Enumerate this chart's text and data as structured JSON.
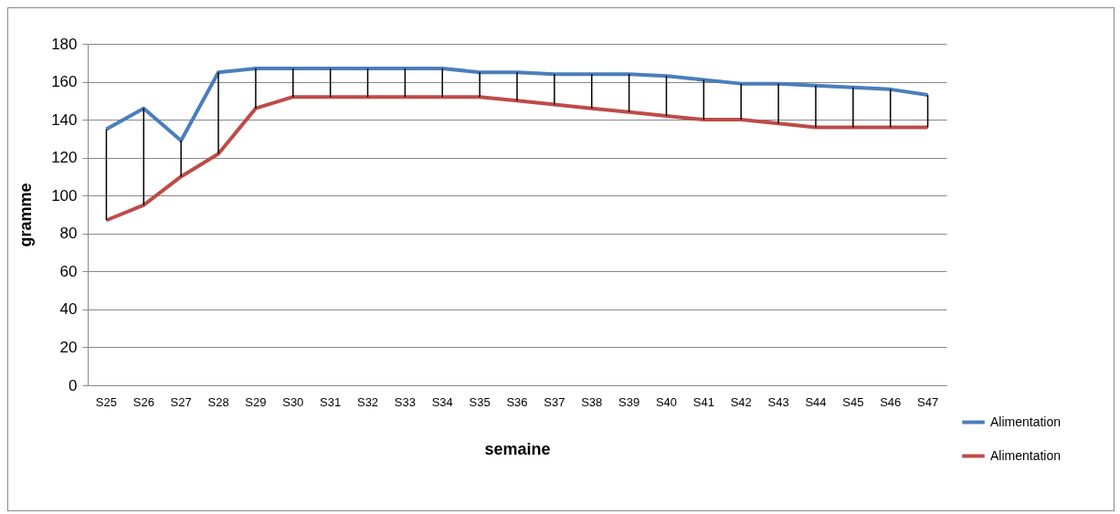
{
  "chart_data": {
    "type": "line",
    "xlabel": "semaine",
    "ylabel": "gramme",
    "categories": [
      "S25",
      "S26",
      "S27",
      "S28",
      "S29",
      "S30",
      "S31",
      "S32",
      "S33",
      "S34",
      "S35",
      "S36",
      "S37",
      "S38",
      "S39",
      "S40",
      "S41",
      "S42",
      "S43",
      "S44",
      "S45",
      "S46",
      "S47"
    ],
    "series": [
      {
        "name": "Alimentation",
        "color": "#4a7ebb",
        "values": [
          135,
          146,
          129,
          165,
          167,
          167,
          167,
          167,
          167,
          167,
          165,
          165,
          164,
          164,
          164,
          163,
          161,
          159,
          159,
          158,
          157,
          156,
          153
        ]
      },
      {
        "name": "Alimentation",
        "color": "#be4b48",
        "values": [
          87,
          95,
          110,
          122,
          146,
          152,
          152,
          152,
          152,
          152,
          152,
          150,
          148,
          146,
          144,
          142,
          140,
          140,
          138,
          136,
          136,
          136,
          136
        ]
      }
    ],
    "ylim": [
      0,
      180
    ],
    "yticks": [
      0,
      20,
      40,
      60,
      80,
      100,
      120,
      140,
      160,
      180
    ],
    "grid": "y",
    "legend": "bottom right",
    "marker": "none",
    "line_style": "solid"
  }
}
